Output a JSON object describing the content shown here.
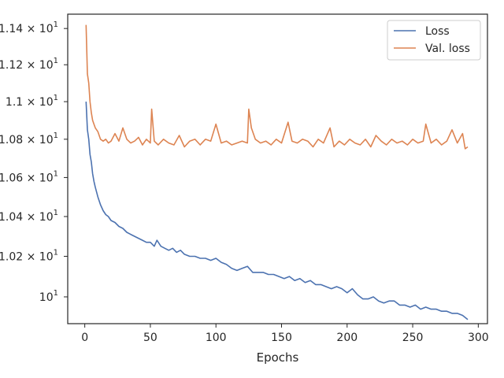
{
  "chart_data": {
    "type": "line",
    "xlabel": "Epochs",
    "ylabel": "",
    "xlim": [
      -13,
      307
    ],
    "ylim": [
      9.87,
      11.48
    ],
    "grid": false,
    "legend_position": "top-right",
    "x_ticks": [
      0,
      50,
      100,
      150,
      200,
      250,
      300
    ],
    "y_ticks": [
      {
        "value": 10.0,
        "label": "10",
        "exp": "1",
        "mantissa": ""
      },
      {
        "value": 10.2,
        "label": "1.02 × 10",
        "exp": "1",
        "mantissa": "1.02"
      },
      {
        "value": 10.4,
        "label": "1.04 × 10",
        "exp": "1",
        "mantissa": "1.04"
      },
      {
        "value": 10.6,
        "label": "1.06 × 10",
        "exp": "1",
        "mantissa": "1.06"
      },
      {
        "value": 10.8,
        "label": "1.08 × 10",
        "exp": "1",
        "mantissa": "1.08"
      },
      {
        "value": 11.0,
        "label": "1.1 × 10",
        "exp": "1",
        "mantissa": "1.1"
      },
      {
        "value": 11.2,
        "label": "1.12 × 10",
        "exp": "1",
        "mantissa": "1.12"
      },
      {
        "value": 11.4,
        "label": "1.14 × 10",
        "exp": "1",
        "mantissa": "1.14"
      }
    ],
    "series": [
      {
        "name": "Loss",
        "color": "#4c72b0",
        "x": [
          1,
          2,
          3,
          4,
          5,
          6,
          7,
          8,
          10,
          12,
          14,
          16,
          18,
          20,
          23,
          26,
          29,
          32,
          35,
          38,
          41,
          44,
          47,
          50,
          53,
          55,
          58,
          61,
          64,
          67,
          70,
          73,
          76,
          80,
          84,
          88,
          92,
          96,
          100,
          104,
          108,
          112,
          116,
          120,
          124,
          128,
          132,
          136,
          140,
          144,
          148,
          152,
          156,
          160,
          164,
          168,
          172,
          176,
          180,
          184,
          188,
          192,
          196,
          200,
          204,
          208,
          212,
          216,
          220,
          224,
          228,
          232,
          236,
          240,
          244,
          248,
          252,
          256,
          260,
          264,
          268,
          272,
          276,
          280,
          284,
          288,
          290,
          292
        ],
        "y": [
          11.0,
          10.85,
          10.8,
          10.72,
          10.68,
          10.62,
          10.58,
          10.55,
          10.5,
          10.46,
          10.43,
          10.41,
          10.4,
          10.38,
          10.37,
          10.35,
          10.34,
          10.32,
          10.31,
          10.3,
          10.29,
          10.28,
          10.27,
          10.27,
          10.25,
          10.28,
          10.25,
          10.24,
          10.23,
          10.24,
          10.22,
          10.23,
          10.21,
          10.2,
          10.2,
          10.19,
          10.19,
          10.18,
          10.19,
          10.17,
          10.16,
          10.14,
          10.13,
          10.14,
          10.15,
          10.12,
          10.12,
          10.12,
          10.11,
          10.11,
          10.1,
          10.09,
          10.1,
          10.08,
          10.09,
          10.07,
          10.08,
          10.06,
          10.06,
          10.05,
          10.04,
          10.05,
          10.04,
          10.02,
          10.04,
          10.01,
          9.99,
          9.99,
          10.0,
          9.98,
          9.97,
          9.98,
          9.98,
          9.96,
          9.96,
          9.95,
          9.96,
          9.94,
          9.95,
          9.94,
          9.94,
          9.93,
          9.93,
          9.92,
          9.92,
          9.91,
          9.9,
          9.89
        ]
      },
      {
        "name": "Val. loss",
        "color": "#dd8452",
        "x": [
          1,
          2,
          3,
          4,
          5,
          6,
          7,
          8,
          10,
          12,
          14,
          16,
          18,
          20,
          23,
          26,
          29,
          32,
          35,
          38,
          41,
          44,
          47,
          50,
          51,
          53,
          56,
          60,
          64,
          68,
          72,
          76,
          80,
          84,
          88,
          92,
          96,
          100,
          104,
          108,
          112,
          116,
          120,
          124,
          125,
          127,
          130,
          134,
          138,
          142,
          146,
          150,
          155,
          158,
          162,
          166,
          170,
          174,
          178,
          182,
          187,
          190,
          194,
          198,
          202,
          206,
          210,
          214,
          218,
          222,
          226,
          230,
          234,
          238,
          242,
          246,
          250,
          254,
          258,
          260,
          264,
          268,
          272,
          276,
          280,
          284,
          288,
          290,
          292
        ],
        "y": [
          11.42,
          11.15,
          11.1,
          11.0,
          10.94,
          10.9,
          10.88,
          10.86,
          10.84,
          10.8,
          10.79,
          10.8,
          10.78,
          10.79,
          10.83,
          10.79,
          10.86,
          10.8,
          10.78,
          10.79,
          10.81,
          10.77,
          10.8,
          10.78,
          10.96,
          10.79,
          10.77,
          10.8,
          10.78,
          10.77,
          10.82,
          10.76,
          10.79,
          10.8,
          10.77,
          10.8,
          10.79,
          10.88,
          10.78,
          10.79,
          10.77,
          10.78,
          10.79,
          10.78,
          10.96,
          10.86,
          10.8,
          10.78,
          10.79,
          10.77,
          10.8,
          10.78,
          10.89,
          10.79,
          10.78,
          10.8,
          10.79,
          10.76,
          10.8,
          10.78,
          10.86,
          10.76,
          10.79,
          10.77,
          10.8,
          10.78,
          10.77,
          10.8,
          10.76,
          10.82,
          10.79,
          10.77,
          10.8,
          10.78,
          10.79,
          10.77,
          10.8,
          10.78,
          10.79,
          10.88,
          10.78,
          10.8,
          10.77,
          10.79,
          10.85,
          10.78,
          10.83,
          10.75,
          10.76
        ]
      }
    ]
  }
}
